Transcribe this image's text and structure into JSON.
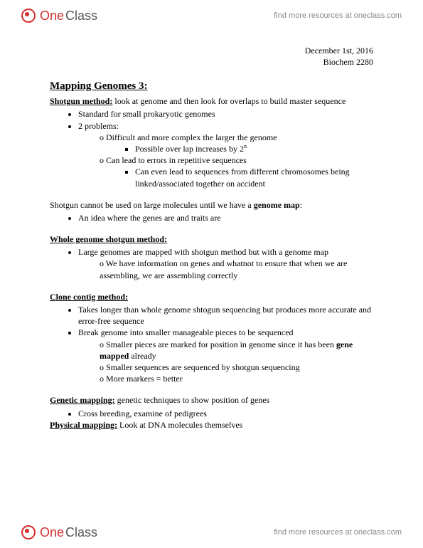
{
  "brand": {
    "part1": "One",
    "part2": "Class",
    "tagline": "find more resources at oneclass.com"
  },
  "dateline": {
    "date": "December 1st, 2016",
    "course": "Biochem 2280"
  },
  "title": "Mapping Genomes 3:",
  "shotgun": {
    "label": "Shotgun method:",
    "desc": " look at genome and then look for overlaps to build master sequence",
    "b1": "Standard for small prokaryotic genomes",
    "b2": "2 problems:",
    "b2a": "Difficult and more complex the larger the genome",
    "b2a1_pre": "Possible over lap increases by 2",
    "b2a1_sup": "n",
    "b2b": "Can lead to errors in repetitive sequences",
    "b2b1": "Can even lead to sequences from different chromosomes being linked/associated together on accident"
  },
  "shotgun_limit": {
    "line_pre": "Shotgun cannot be used on large molecules until we have a ",
    "bold": "genome map",
    "line_post": ":",
    "b1": "An idea where the genes are and traits are"
  },
  "wgs": {
    "heading": "Whole genome shotgun method:",
    "b1": "Large genomes are mapped with shotgun method but with a genome map",
    "b1a": "We have information on genes and whatnot to ensure that when we are assembling, we are assembling correctly"
  },
  "contig": {
    "heading": "Clone contig method:",
    "b1": "Takes longer than whole genome shtogun sequencing but produces more accurate and error-free sequence",
    "b2": "Break genome into smaller manageable pieces to be sequenced",
    "b2a_pre": "Smaller pieces are marked for position in genome since it has been ",
    "b2a_bold": "gene mapped",
    "b2a_post": " already",
    "b2b": "Smaller sequences are sequenced by shotgun sequencing",
    "b2c": "More markers = better"
  },
  "genetic": {
    "label": "Genetic mapping:",
    "desc": " genetic techniques to show position of genes",
    "b1": "Cross breeding, examine of pedigrees"
  },
  "physical": {
    "label": "Physical mapping:",
    "desc": " Look at DNA molecules themselves"
  }
}
